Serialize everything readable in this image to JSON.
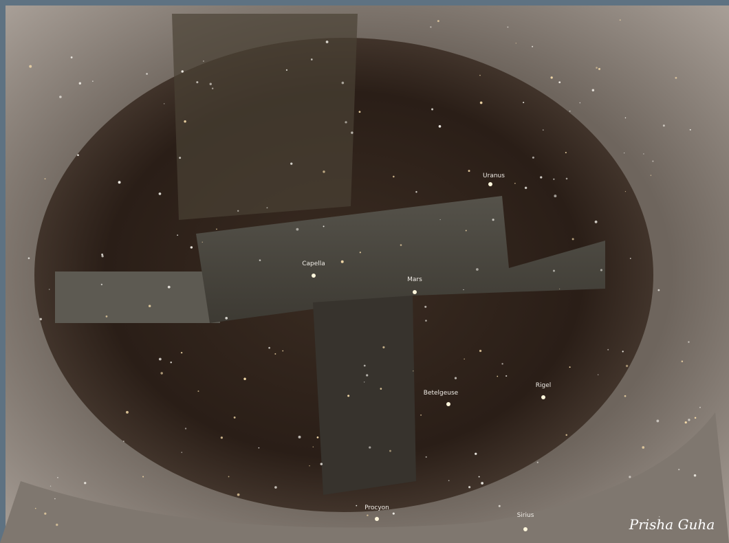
{
  "star_labels": [
    "Uranus",
    "Capella",
    "Mars",
    "Betelgeuse",
    "Rigel",
    "Procyon",
    "Sirius"
  ],
  "watermark": "Prisha Guha"
}
